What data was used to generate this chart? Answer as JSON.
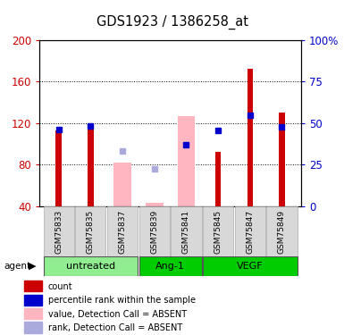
{
  "title": "GDS1923 / 1386258_at",
  "samples": [
    "GSM75833",
    "GSM75835",
    "GSM75837",
    "GSM75839",
    "GSM75841",
    "GSM75845",
    "GSM75847",
    "GSM75849"
  ],
  "red_bars": [
    113,
    115,
    null,
    null,
    null,
    92,
    172,
    130
  ],
  "blue_squares_left": [
    114,
    117,
    null,
    null,
    99,
    113,
    128,
    116
  ],
  "pink_bars": [
    null,
    null,
    82,
    43,
    127,
    null,
    null,
    null
  ],
  "lavender_squares_left": [
    null,
    null,
    93,
    76,
    null,
    null,
    null,
    null
  ],
  "ylim_left": [
    40,
    200
  ],
  "ylim_right": [
    0,
    100
  ],
  "yticks_left": [
    40,
    80,
    120,
    160,
    200
  ],
  "yticks_right": [
    0,
    25,
    50,
    75,
    100
  ],
  "group_spans": [
    {
      "label": "untreated",
      "color": "#90ee90",
      "start": 0,
      "end": 2
    },
    {
      "label": "Ang-1",
      "color": "#00cc00",
      "start": 3,
      "end": 4
    },
    {
      "label": "VEGF",
      "color": "#00cc00",
      "start": 5,
      "end": 7
    }
  ],
  "legend_items": [
    {
      "color": "#cc0000",
      "label": "count"
    },
    {
      "color": "#0000cc",
      "label": "percentile rank within the sample"
    },
    {
      "color": "#ffb6c1",
      "label": "value, Detection Call = ABSENT"
    },
    {
      "color": "#aaaadd",
      "label": "rank, Detection Call = ABSENT"
    }
  ]
}
